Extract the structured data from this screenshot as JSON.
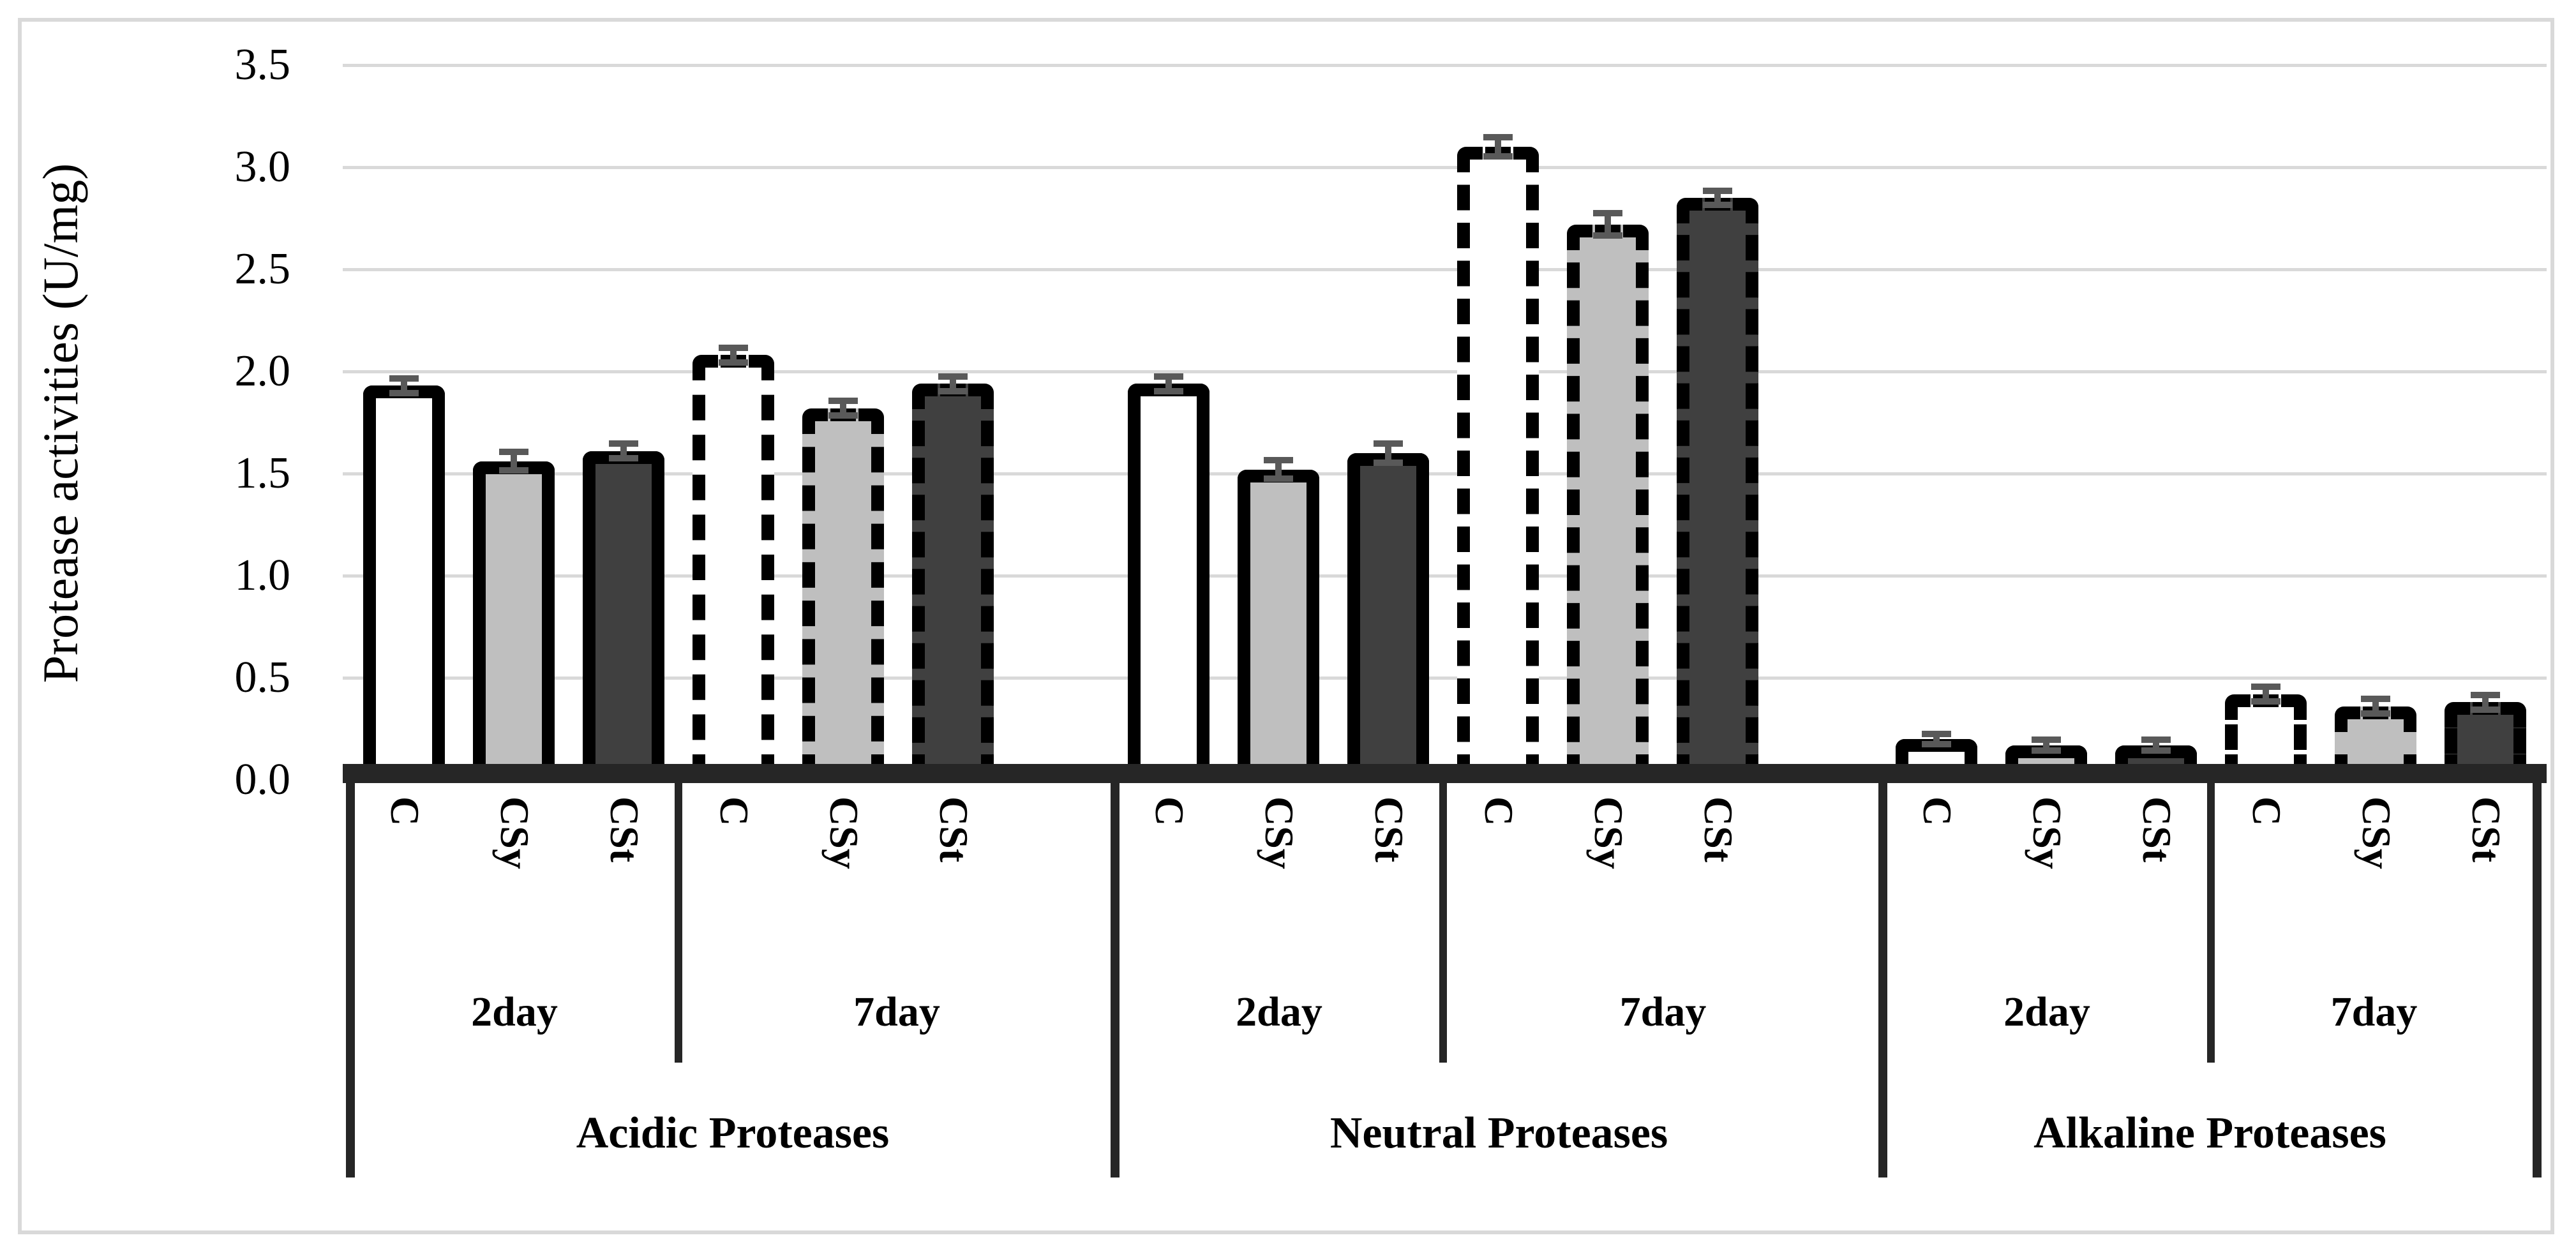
{
  "figure": {
    "ylabel": "Protease activities (U/mg)"
  },
  "colors": {
    "background": "#ffffff",
    "figure_border": "#d9d9d9",
    "gridline": "#d9d9d9",
    "axis_line": "#262626",
    "bar_border": "#000000",
    "error_bar": "#595959",
    "fill_C": "#ffffff",
    "fill_CSy": "#bfbfbf",
    "fill_CSt": "#404040"
  },
  "chart_data": {
    "type": "bar",
    "title": "",
    "xlabel": "",
    "ylabel": "Protease activities (U/mg)",
    "ylim": [
      0,
      3.5
    ],
    "ytick_labels": [
      "0.0",
      "0.5",
      "1.0",
      "1.5",
      "2.0",
      "2.5",
      "3.0",
      "3.5"
    ],
    "grid": true,
    "legend_position": "none",
    "subgroup_border_styles": {
      "2day": "solid",
      "7day": "dashed"
    },
    "series_fills": {
      "C": "#ffffff",
      "CSy": "#bfbfbf",
      "CSt": "#404040"
    },
    "groups": [
      {
        "name": "Acidic Proteases",
        "subgroups": [
          {
            "name": "2day",
            "border": "solid",
            "bars": [
              {
                "label": "C",
                "value": 1.93,
                "err": 0.02
              },
              {
                "label": "CSy",
                "value": 1.56,
                "err": 0.03
              },
              {
                "label": "CSt",
                "value": 1.61,
                "err": 0.02
              }
            ]
          },
          {
            "name": "7day",
            "border": "dashed",
            "bars": [
              {
                "label": "C",
                "value": 2.08,
                "err": 0.02
              },
              {
                "label": "CSy",
                "value": 1.82,
                "err": 0.02
              },
              {
                "label": "CSt",
                "value": 1.94,
                "err": 0.02
              }
            ]
          }
        ]
      },
      {
        "name": "Neutral Proteases",
        "subgroups": [
          {
            "name": "2day",
            "border": "solid",
            "bars": [
              {
                "label": "C",
                "value": 1.94,
                "err": 0.02
              },
              {
                "label": "CSy",
                "value": 1.52,
                "err": 0.03
              },
              {
                "label": "CSt",
                "value": 1.6,
                "err": 0.03
              }
            ]
          },
          {
            "name": "7day",
            "border": "dashed",
            "bars": [
              {
                "label": "C",
                "value": 3.1,
                "err": 0.03
              },
              {
                "label": "CSy",
                "value": 2.72,
                "err": 0.04
              },
              {
                "label": "CSt",
                "value": 2.85,
                "err": 0.02
              }
            ]
          }
        ]
      },
      {
        "name": "Alkaline Proteases",
        "subgroups": [
          {
            "name": "2day",
            "border": "solid",
            "bars": [
              {
                "label": "C",
                "value": 0.2,
                "err": 0.01
              },
              {
                "label": "CSy",
                "value": 0.17,
                "err": 0.01
              },
              {
                "label": "CSt",
                "value": 0.17,
                "err": 0.01
              }
            ]
          },
          {
            "name": "7day",
            "border": "dashed",
            "bars": [
              {
                "label": "C",
                "value": 0.42,
                "err": 0.02
              },
              {
                "label": "CSy",
                "value": 0.36,
                "err": 0.02
              },
              {
                "label": "CSt",
                "value": 0.38,
                "err": 0.02
              }
            ]
          }
        ]
      }
    ]
  }
}
